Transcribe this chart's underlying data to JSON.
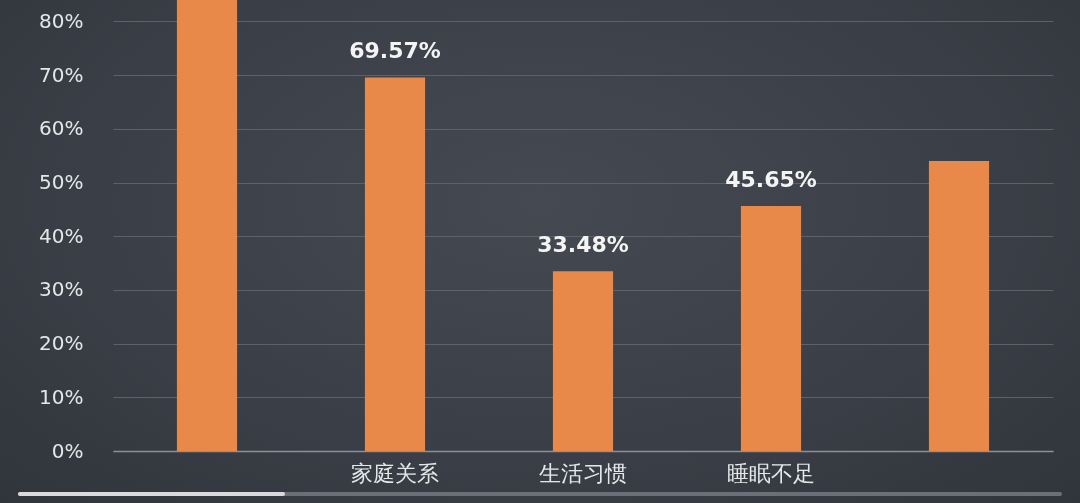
{
  "chart_data": {
    "type": "bar",
    "categories": [
      null,
      "家庭关系",
      "生活习惯",
      "睡眠不足",
      null
    ],
    "values": [
      84,
      69.57,
      33.48,
      45.65,
      54
    ],
    "value_labels": [
      null,
      "69.57%",
      "33.48%",
      "45.65%",
      null
    ],
    "color": "#e8894a",
    "ylim": [
      0,
      84
    ],
    "yticks": [
      {
        "value": 0,
        "label": "0%"
      },
      {
        "value": 10,
        "label": "10%"
      },
      {
        "value": 20,
        "label": "20%"
      },
      {
        "value": 30,
        "label": "30%"
      },
      {
        "value": 40,
        "label": "40%"
      },
      {
        "value": 50,
        "label": "50%"
      },
      {
        "value": 60,
        "label": "60%"
      },
      {
        "value": 70,
        "label": "70%"
      },
      {
        "value": 80,
        "label": "80%"
      }
    ],
    "grid": "y"
  }
}
